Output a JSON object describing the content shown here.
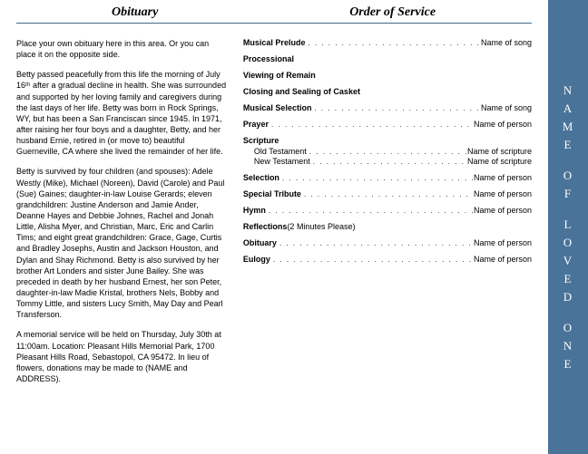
{
  "colors": {
    "banner_bg": "#4a7399",
    "hr_line": "#3d6a8f",
    "text": "#000000",
    "banner_text": "#ffffff"
  },
  "headers": {
    "left": "Obituary",
    "right": "Order of Service"
  },
  "obituary": {
    "p1": "Place your own obituary here in this area. Or you can place it on the opposite side.",
    "p2": "Betty passed peacefully from this life the morning of July 16ᵗʰ after a gradual decline in health.  She was surrounded and supported by her loving family and caregivers during the last days of her life.  Betty was born in Rock Springs, WY, but has been a San Franciscan since 1945.  In 1971, after raising her four boys and a daughter, Betty, and her husband Ernie, retired in (or move to) beautiful Guerneville, CA where she lived the remainder of her life.",
    "p3": "Betty is survived by four children (and spouses): Adele Westly (Mike), Michael (Noreen), David (Carole) and Paul (Sue) Gaines;  daughter-in-law Louise Gerards;  eleven grandchildren: Justine Anderson and Jamie Ander, Deanne Hayes and Debbie Johnes, Rachel and Jonah Little, Alisha Myer, and Christian, Marc, Eric and Carlin Tims;  and eight great grandchildren: Grace, Gage, Curtis and Bradley Josephs, Austin and Jackson Houston, and Dylan and Shay Richmond.  Betty is also survived by her brother Art Londers and sister June Bailey.  She was preceded in death by her husband Ernest, her son Peter, daughter-in-law Madie Kristal, brothers Nels, Bobby and Tommy Little, and sisters Lucy Smith, May Day and Pearl Transferson.",
    "p4": "A memorial service will be held on Thursday, July 30th at 11:00am.  Location:  Pleasant Hills Memorial Park, 1700 Pleasant Hills Road, Sebastopol, CA 95472.  In lieu of flowers, donations may be made to (NAME and ADDRESS)."
  },
  "order": [
    {
      "label": "Musical Prelude",
      "value": "Name of song",
      "dots": true
    },
    {
      "label": "Processional"
    },
    {
      "label": "Viewing of Remain"
    },
    {
      "label": "Closing and Sealing of Casket"
    },
    {
      "label": "Musical Selection",
      "value": "Name of song",
      "dots": true
    },
    {
      "label": "Prayer",
      "value": "Name of person",
      "dots": true
    },
    {
      "label": "Scripture",
      "sub": [
        {
          "label": "Old Testament",
          "value": "Name of scripture",
          "dots": true
        },
        {
          "label": "New Testament",
          "value": "Name of scripture",
          "dots": true
        }
      ]
    },
    {
      "label": "Selection",
      "value": "Name of person",
      "dots": true
    },
    {
      "label": "Special Tribute",
      "value": "Name of person",
      "dots": true
    },
    {
      "label": "Hymn",
      "value": "Name of person",
      "dots": true
    },
    {
      "label": "Reflections",
      "note": " (2 Minutes Please)"
    },
    {
      "label": "Obituary",
      "value": "Name of person",
      "dots": true
    },
    {
      "label": "Eulogy",
      "value": "Name of person",
      "dots": true
    }
  ],
  "banner": {
    "word1": "NAME",
    "word2": "OF",
    "word3": "LOVED",
    "word4": "ONE"
  }
}
